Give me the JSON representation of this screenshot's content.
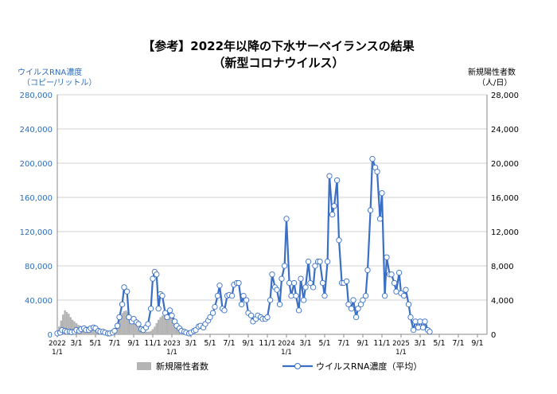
{
  "title": "【参考】2022年以降の下水サーベイランスの結果",
  "subtitle": "（新型コロナウイルス）",
  "chart_data": {
    "type": "line",
    "left_axis": {
      "label": "ウイルスRNA濃度",
      "unit": "（コピー/リットル）",
      "ylim": [
        0,
        280000
      ],
      "ticks": [
        "0",
        "40,000",
        "80,000",
        "120,000",
        "160,000",
        "200,000",
        "240,000",
        "280,000"
      ]
    },
    "right_axis": {
      "label": "新規陽性者数",
      "unit": "（人/日）",
      "ylim": [
        0,
        28000
      ],
      "ticks": [
        "0",
        "4,000",
        "8,000",
        "12,000",
        "16,000",
        "20,000",
        "24,000",
        "28,000"
      ]
    },
    "x_ticks": [
      {
        "m": 0,
        "label": "2022",
        "label2": "1/1"
      },
      {
        "m": 2,
        "label": "3/1"
      },
      {
        "m": 4,
        "label": "5/1"
      },
      {
        "m": 6,
        "label": "7/1"
      },
      {
        "m": 8,
        "label": "9/1"
      },
      {
        "m": 10,
        "label": "11/1"
      },
      {
        "m": 12,
        "label": "2023",
        "label2": "1/1"
      },
      {
        "m": 14,
        "label": "3/1"
      },
      {
        "m": 16,
        "label": "5/1"
      },
      {
        "m": 18,
        "label": "7/1"
      },
      {
        "m": 20,
        "label": "9/1"
      },
      {
        "m": 22,
        "label": "11/1"
      },
      {
        "m": 24,
        "label": "2024",
        "label2": "1/1"
      },
      {
        "m": 26,
        "label": "3/1"
      },
      {
        "m": 28,
        "label": "5/1"
      },
      {
        "m": 30,
        "label": "7/1"
      },
      {
        "m": 32,
        "label": "9/1"
      },
      {
        "m": 34,
        "label": "11/1"
      },
      {
        "m": 36,
        "label": "2025",
        "label2": "1/1"
      },
      {
        "m": 38,
        "label": "3/1"
      },
      {
        "m": 40,
        "label": "5/1"
      },
      {
        "m": 42,
        "label": "7/1"
      },
      {
        "m": 44,
        "label": "9/1"
      }
    ],
    "x_range_months": [
      0,
      45
    ],
    "series": [
      {
        "name": "新規陽性者数",
        "type": "bar",
        "axis": "right",
        "color": "#b4b4b4",
        "points": [
          [
            0.2,
            900
          ],
          [
            0.4,
            1600
          ],
          [
            0.6,
            2300
          ],
          [
            0.8,
            2800
          ],
          [
            1.0,
            2600
          ],
          [
            1.2,
            2400
          ],
          [
            1.4,
            2000
          ],
          [
            1.6,
            1700
          ],
          [
            1.8,
            1500
          ],
          [
            2.0,
            1300
          ],
          [
            2.2,
            1100
          ],
          [
            2.4,
            1000
          ],
          [
            2.6,
            900
          ],
          [
            2.8,
            850
          ],
          [
            3.0,
            850
          ],
          [
            3.2,
            900
          ],
          [
            3.4,
            800
          ],
          [
            3.6,
            700
          ],
          [
            3.8,
            750
          ],
          [
            4.0,
            800
          ],
          [
            4.2,
            700
          ],
          [
            4.4,
            600
          ],
          [
            4.6,
            500
          ],
          [
            4.8,
            400
          ],
          [
            5.0,
            350
          ],
          [
            5.2,
            300
          ],
          [
            5.4,
            250
          ],
          [
            5.6,
            250
          ],
          [
            5.8,
            300
          ],
          [
            6.0,
            500
          ],
          [
            6.2,
            900
          ],
          [
            6.4,
            1400
          ],
          [
            6.6,
            2000
          ],
          [
            6.8,
            2500
          ],
          [
            7.0,
            2700
          ],
          [
            7.2,
            2800
          ],
          [
            7.4,
            2600
          ],
          [
            7.6,
            2300
          ],
          [
            7.8,
            2000
          ],
          [
            8.0,
            1700
          ],
          [
            8.2,
            1400
          ],
          [
            8.4,
            1100
          ],
          [
            8.6,
            800
          ],
          [
            8.8,
            600
          ],
          [
            9.0,
            400
          ],
          [
            9.2,
            350
          ],
          [
            9.4,
            300
          ],
          [
            9.6,
            300
          ],
          [
            9.8,
            400
          ],
          [
            10.0,
            600
          ],
          [
            10.2,
            900
          ],
          [
            10.4,
            1300
          ],
          [
            10.6,
            1700
          ],
          [
            10.8,
            2000
          ],
          [
            11.0,
            2200
          ],
          [
            11.2,
            2300
          ],
          [
            11.4,
            2200
          ],
          [
            11.6,
            2100
          ],
          [
            11.8,
            2100
          ],
          [
            12.0,
            2000
          ],
          [
            12.2,
            1800
          ],
          [
            12.4,
            1500
          ],
          [
            12.6,
            1100
          ],
          [
            12.8,
            800
          ],
          [
            13.0,
            500
          ],
          [
            13.2,
            350
          ],
          [
            13.4,
            250
          ],
          [
            13.6,
            200
          ],
          [
            13.8,
            150
          ],
          [
            14.0,
            120
          ],
          [
            14.2,
            100
          ],
          [
            14.4,
            90
          ],
          [
            14.6,
            80
          ],
          [
            14.8,
            80
          ],
          [
            15.0,
            70
          ],
          [
            15.2,
            60
          ],
          [
            15.4,
            50
          ]
        ]
      },
      {
        "name": "ウイルスRNA濃度（平均）",
        "type": "line",
        "axis": "left",
        "color": "#3a6fc4",
        "points": [
          [
            0.0,
            1000
          ],
          [
            0.3,
            2000
          ],
          [
            0.5,
            5000
          ],
          [
            0.8,
            4000
          ],
          [
            1.0,
            3000
          ],
          [
            1.3,
            3000
          ],
          [
            1.5,
            2500
          ],
          [
            1.8,
            3000
          ],
          [
            2.0,
            5000
          ],
          [
            2.3,
            4000
          ],
          [
            2.5,
            6000
          ],
          [
            2.8,
            7000
          ],
          [
            3.0,
            5000
          ],
          [
            3.3,
            5000
          ],
          [
            3.5,
            7000
          ],
          [
            3.8,
            8000
          ],
          [
            4.0,
            7000
          ],
          [
            4.3,
            4000
          ],
          [
            4.5,
            3000
          ],
          [
            4.8,
            3000
          ],
          [
            5.0,
            2000
          ],
          [
            5.3,
            1000
          ],
          [
            5.5,
            1000
          ],
          [
            5.8,
            2000
          ],
          [
            6.0,
            4000
          ],
          [
            6.3,
            10000
          ],
          [
            6.5,
            20000
          ],
          [
            6.8,
            35000
          ],
          [
            7.0,
            55000
          ],
          [
            7.3,
            50000
          ],
          [
            7.5,
            20000
          ],
          [
            7.8,
            15000
          ],
          [
            8.0,
            18000
          ],
          [
            8.3,
            14000
          ],
          [
            8.5,
            12000
          ],
          [
            8.8,
            6000
          ],
          [
            9.0,
            5000
          ],
          [
            9.3,
            8000
          ],
          [
            9.5,
            12000
          ],
          [
            9.8,
            30000
          ],
          [
            10.0,
            65000
          ],
          [
            10.2,
            73000
          ],
          [
            10.4,
            70000
          ],
          [
            10.6,
            30000
          ],
          [
            10.8,
            47000
          ],
          [
            11.0,
            45000
          ],
          [
            11.3,
            25000
          ],
          [
            11.5,
            20000
          ],
          [
            11.8,
            28000
          ],
          [
            12.0,
            22000
          ],
          [
            12.3,
            15000
          ],
          [
            12.5,
            10000
          ],
          [
            12.8,
            7000
          ],
          [
            13.0,
            4000
          ],
          [
            13.3,
            3000
          ],
          [
            13.5,
            2000
          ],
          [
            13.8,
            1000
          ],
          [
            14.0,
            2000
          ],
          [
            14.3,
            4000
          ],
          [
            14.5,
            5000
          ],
          [
            14.8,
            9000
          ],
          [
            15.0,
            10000
          ],
          [
            15.3,
            8000
          ],
          [
            15.5,
            12000
          ],
          [
            15.8,
            16000
          ],
          [
            16.0,
            20000
          ],
          [
            16.3,
            25000
          ],
          [
            16.5,
            32000
          ],
          [
            16.8,
            45000
          ],
          [
            17.0,
            57000
          ],
          [
            17.3,
            30000
          ],
          [
            17.5,
            28000
          ],
          [
            17.8,
            45000
          ],
          [
            18.0,
            46000
          ],
          [
            18.3,
            45000
          ],
          [
            18.5,
            58000
          ],
          [
            18.8,
            60000
          ],
          [
            19.0,
            60000
          ],
          [
            19.3,
            35000
          ],
          [
            19.5,
            45000
          ],
          [
            19.8,
            40000
          ],
          [
            20.0,
            25000
          ],
          [
            20.3,
            22000
          ],
          [
            20.5,
            15000
          ],
          [
            20.8,
            18000
          ],
          [
            21.0,
            22000
          ],
          [
            21.3,
            20000
          ],
          [
            21.5,
            18000
          ],
          [
            21.8,
            18000
          ],
          [
            22.0,
            20000
          ],
          [
            22.3,
            40000
          ],
          [
            22.5,
            70000
          ],
          [
            22.8,
            55000
          ],
          [
            23.0,
            52000
          ],
          [
            23.3,
            35000
          ],
          [
            23.5,
            65000
          ],
          [
            23.8,
            80000
          ],
          [
            24.0,
            135000
          ],
          [
            24.3,
            60000
          ],
          [
            24.5,
            45000
          ],
          [
            24.8,
            60000
          ],
          [
            25.0,
            45000
          ],
          [
            25.3,
            28000
          ],
          [
            25.5,
            65000
          ],
          [
            25.8,
            40000
          ],
          [
            26.0,
            55000
          ],
          [
            26.3,
            85000
          ],
          [
            26.5,
            60000
          ],
          [
            26.8,
            55000
          ],
          [
            27.0,
            80000
          ],
          [
            27.3,
            85000
          ],
          [
            27.5,
            85000
          ],
          [
            27.8,
            60000
          ],
          [
            28.0,
            45000
          ],
          [
            28.3,
            85000
          ],
          [
            28.5,
            185000
          ],
          [
            28.8,
            140000
          ],
          [
            29.0,
            150000
          ],
          [
            29.3,
            180000
          ],
          [
            29.5,
            110000
          ],
          [
            29.8,
            60000
          ],
          [
            30.0,
            60000
          ],
          [
            30.3,
            62000
          ],
          [
            30.5,
            35000
          ],
          [
            30.8,
            30000
          ],
          [
            31.0,
            40000
          ],
          [
            31.3,
            20000
          ],
          [
            31.5,
            30000
          ],
          [
            31.8,
            35000
          ],
          [
            32.0,
            40000
          ],
          [
            32.3,
            45000
          ],
          [
            32.5,
            75000
          ],
          [
            32.8,
            145000
          ],
          [
            33.0,
            205000
          ],
          [
            33.3,
            195000
          ],
          [
            33.5,
            190000
          ],
          [
            33.8,
            135000
          ],
          [
            34.0,
            165000
          ],
          [
            34.3,
            45000
          ],
          [
            34.5,
            90000
          ],
          [
            34.8,
            70000
          ],
          [
            35.0,
            70000
          ],
          [
            35.3,
            60000
          ],
          [
            35.5,
            50000
          ],
          [
            35.8,
            72000
          ],
          [
            36.0,
            48000
          ],
          [
            36.3,
            45000
          ],
          [
            36.5,
            52000
          ],
          [
            36.8,
            35000
          ],
          [
            37.0,
            20000
          ],
          [
            37.3,
            5000
          ],
          [
            37.5,
            15000
          ],
          [
            37.8,
            8000
          ],
          [
            38.0,
            15000
          ],
          [
            38.3,
            8000
          ],
          [
            38.5,
            15000
          ],
          [
            38.8,
            5000
          ],
          [
            39.0,
            3000
          ]
        ]
      }
    ],
    "grid": "horizontal"
  },
  "legend": {
    "cases": "新規陽性者数",
    "rna": "ウイルスRNA濃度（平均）"
  }
}
